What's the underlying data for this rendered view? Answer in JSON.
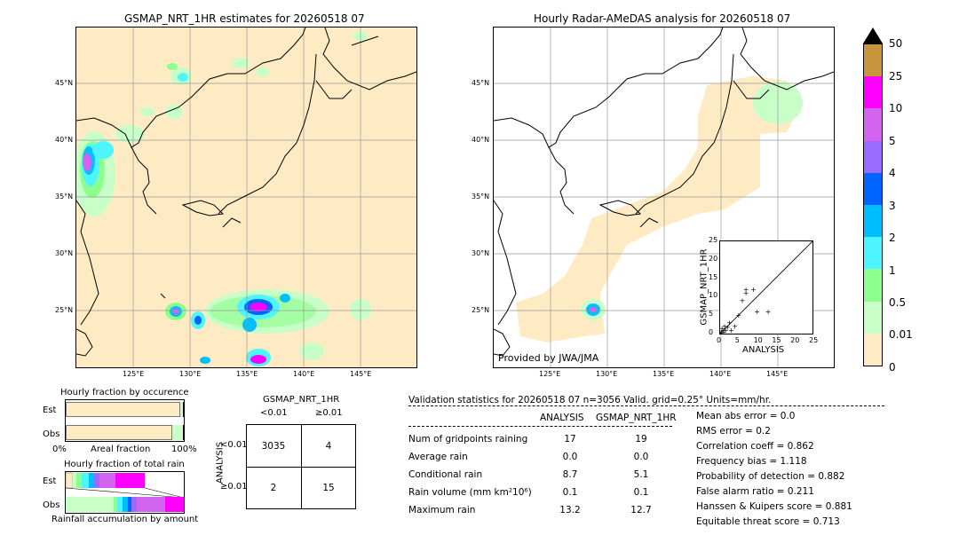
{
  "left_map": {
    "title": "GSMAP_NRT_1HR estimates for 20260518 07",
    "lat_labels": [
      "45°N",
      "40°N",
      "35°N",
      "30°N",
      "25°N"
    ],
    "lon_labels": [
      "125°E",
      "130°E",
      "135°E",
      "140°E",
      "145°E"
    ]
  },
  "right_map": {
    "title": "Hourly Radar-AMeDAS analysis for 20260518 07",
    "lat_labels": [
      "45°N",
      "40°N",
      "35°N",
      "30°N",
      "25°N"
    ],
    "lon_labels": [
      "125°E",
      "130°E",
      "135°E",
      "140°E",
      "145°E"
    ],
    "credit": "Provided by JWA/JMA"
  },
  "colorbar": {
    "labels": [
      "50",
      "25",
      "10",
      "5",
      "4",
      "3",
      "2",
      "1",
      "0.5",
      "0.01",
      "0"
    ],
    "colors": [
      "#c8963c",
      "#ff00ff",
      "#d264f0",
      "#9b6bff",
      "#0064ff",
      "#00bfff",
      "#4ef4ff",
      "#8cff8c",
      "#c8ffc8",
      "#ffebc3"
    ]
  },
  "chart_data": [
    {
      "type": "scatter",
      "xlabel": "ANALYSIS",
      "ylabel": "GSMAP_NRT_1HR",
      "xlim": [
        0,
        25
      ],
      "ylim": [
        0,
        25
      ],
      "ticks": [
        "0",
        "5",
        "10",
        "15",
        "20",
        "25"
      ],
      "points": [
        [
          0.3,
          0.5
        ],
        [
          0.5,
          1.5
        ],
        [
          1,
          0.5
        ],
        [
          1.2,
          2
        ],
        [
          1.5,
          1
        ],
        [
          2,
          1.8
        ],
        [
          2.5,
          3
        ],
        [
          3,
          1
        ],
        [
          4,
          2
        ],
        [
          5,
          5
        ],
        [
          6,
          9
        ],
        [
          7,
          12
        ],
        [
          7,
          11
        ],
        [
          9,
          12
        ],
        [
          10,
          6
        ],
        [
          13,
          6
        ],
        [
          0.2,
          0.2
        ],
        [
          1,
          1
        ]
      ]
    },
    {
      "type": "bar",
      "title": "Hourly fraction by occurence",
      "categories": [
        "Est",
        "Obs"
      ],
      "xlabel": "Areal fraction",
      "x_tick_labels": [
        "0%",
        "100%"
      ],
      "series": [
        {
          "values": [
            0.985,
            0.93
          ]
        },
        {
          "values": [
            0.01,
            0.06
          ]
        },
        {
          "values": [
            0.005,
            0.01
          ]
        }
      ]
    },
    {
      "type": "bar",
      "title": "Hourly fraction of total rain",
      "categories": [
        "Est",
        "Obs"
      ],
      "xlabel": "Rainfall accumulation by amount"
    }
  ],
  "contingency": {
    "header": "GSMAP_NRT_1HR",
    "col_labels": [
      "<0.01",
      "≥0.01"
    ],
    "row_axis": "ANALYSIS",
    "row_labels": [
      "<0.01",
      "≥0.01"
    ],
    "cells": [
      [
        "3035",
        "4"
      ],
      [
        "2",
        "15"
      ]
    ]
  },
  "validation": {
    "header": "Validation statistics for 20260518 07  n=3056 Valid. grid=0.25° Units=mm/hr.",
    "col_analysis": "ANALYSIS",
    "col_gsmap": "GSMAP_NRT_1HR",
    "rows": [
      {
        "label": "Num of gridpoints raining",
        "analysis": "17",
        "gsmap": "19"
      },
      {
        "label": "Average rain",
        "analysis": "0.0",
        "gsmap": "0.0"
      },
      {
        "label": "Conditional rain",
        "analysis": "8.7",
        "gsmap": "5.1"
      },
      {
        "label": "Rain volume (mm km²10⁶)",
        "analysis": "0.1",
        "gsmap": "0.1"
      },
      {
        "label": "Maximum rain",
        "analysis": "13.2",
        "gsmap": "12.7"
      }
    ],
    "scores": [
      "Mean abs error =    0.0",
      "RMS error =    0.2",
      "Correlation coeff =  0.862",
      "Frequency bias =  1.118",
      "Probability of detection =  0.882",
      "False alarm ratio =  0.211",
      "Hanssen & Kuipers score =  0.881",
      "Equitable threat score =  0.713"
    ]
  }
}
